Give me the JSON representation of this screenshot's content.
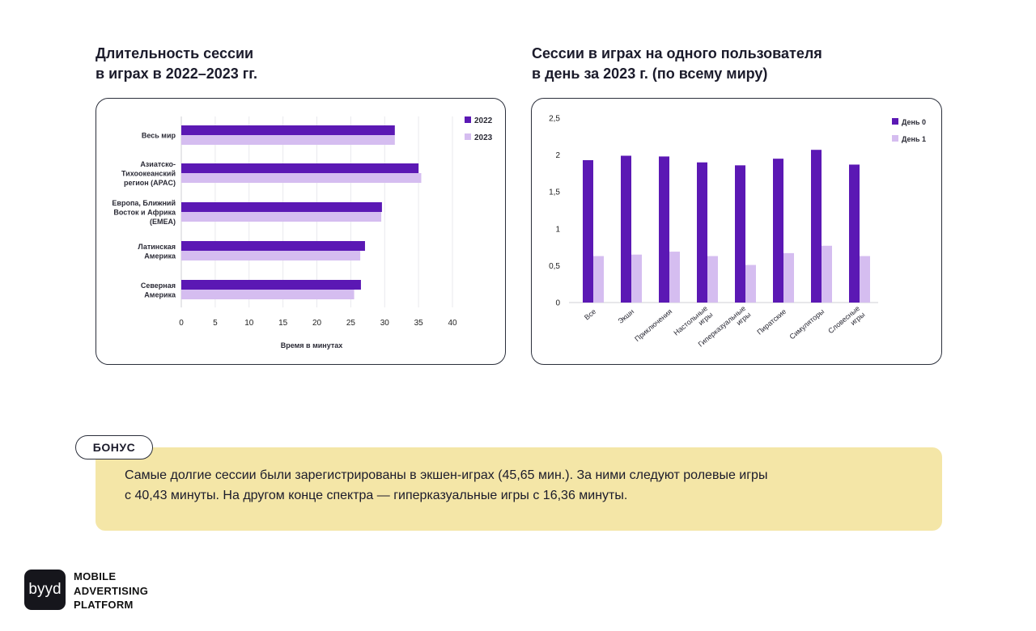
{
  "left_title": [
    "Длительность сессии",
    "в играх в 2022–2023 гг."
  ],
  "right_title": [
    "Сессии в играх на одного пользователя",
    "в день за 2023 г. (по всему миру)"
  ],
  "colors": {
    "dark": "#5b18b4",
    "light": "#d5bdf0",
    "bonus_bg": "#f4e6a7",
    "border": "#2b2f3b"
  },
  "bonus": {
    "tag": "БОНУС",
    "lines": [
      "Самые долгие сессии были зарегистрированы в экшен-играх (45,65 мин.). За ними следуют ролевые игры",
      "с 40,43 минуты. На другом конце спектра — гиперказуальные игры с 16,36 минуты."
    ]
  },
  "logo": {
    "mark": "bуyd",
    "lines": [
      "MOBILE",
      "ADVERTISING",
      "PLATFORM"
    ]
  },
  "chart_data": [
    {
      "type": "bar",
      "orientation": "horizontal",
      "categories": [
        [
          "Весь мир"
        ],
        [
          "Азиатско-",
          "Тихоокеанский",
          "регион (APAC)"
        ],
        [
          "Европа, Ближний",
          "Восток и Африка",
          "(EMEA)"
        ],
        [
          "Латинская",
          "Америка"
        ],
        [
          "Северная",
          "Америка"
        ]
      ],
      "series": [
        {
          "name": "2022",
          "values": [
            31.5,
            35.0,
            29.6,
            27.1,
            26.5
          ]
        },
        {
          "name": "2023",
          "values": [
            31.5,
            35.4,
            29.5,
            26.4,
            25.5
          ]
        }
      ],
      "xlabel": "Время в минутах",
      "xlim": [
        0,
        40
      ],
      "xticks": [
        "0",
        "5",
        "10",
        "15",
        "20",
        "25",
        "30",
        "35",
        "40"
      ],
      "grid": true,
      "legend": "top-right"
    },
    {
      "type": "bar",
      "orientation": "vertical",
      "categories": [
        [
          "Все"
        ],
        [
          "Экшн"
        ],
        [
          "Приключения"
        ],
        [
          "Настольные",
          "игры"
        ],
        [
          "Гиперказуальные",
          "игры"
        ],
        [
          "Пиратские"
        ],
        [
          "Симуляторы"
        ],
        [
          "Словесные",
          "игры"
        ]
      ],
      "series": [
        {
          "name": "День 0",
          "values": [
            1.93,
            1.99,
            1.98,
            1.9,
            1.86,
            1.95,
            2.07,
            1.87
          ]
        },
        {
          "name": "День 1",
          "values": [
            0.63,
            0.65,
            0.69,
            0.63,
            0.51,
            0.67,
            0.77,
            0.63
          ]
        }
      ],
      "ylim": [
        0,
        2.5
      ],
      "yticks": [
        "0",
        "0,5",
        "1",
        "1,5",
        "2",
        "2,5"
      ],
      "grid": false,
      "legend": "top-right"
    }
  ]
}
